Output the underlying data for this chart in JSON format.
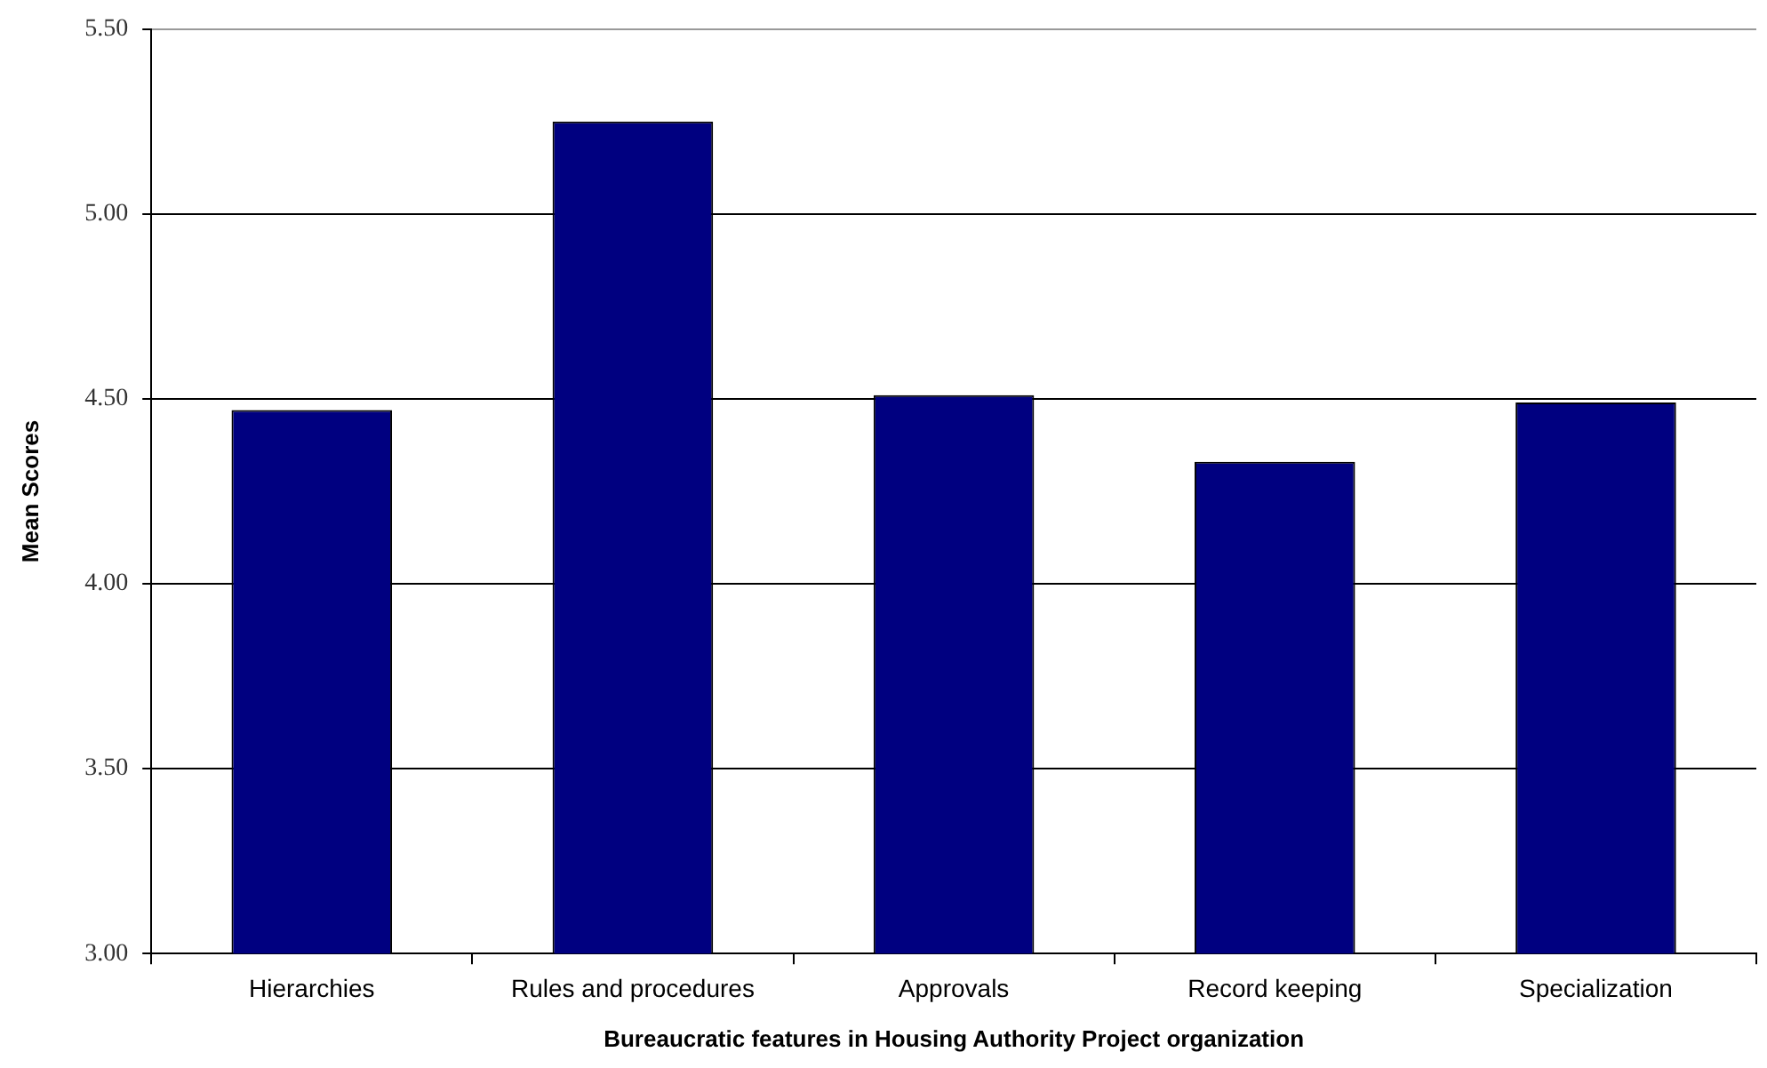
{
  "chart_data": {
    "type": "bar",
    "xlabel": "Bureaucratic features in Housing Authority Project organization",
    "ylabel": "Mean Scores",
    "categories": [
      "Hierarchies",
      "Rules and procedures",
      "Approvals",
      "Record keeping",
      "Specialization"
    ],
    "values": [
      4.47,
      5.25,
      4.51,
      4.33,
      4.49
    ],
    "color": "#000080",
    "ylim": [
      3,
      5.5
    ],
    "yticks": [
      {
        "value": 3,
        "label": "3.00"
      },
      {
        "value": 3.5,
        "label": "3.50"
      },
      {
        "value": 4,
        "label": "4.00"
      },
      {
        "value": 4.5,
        "label": "4.50"
      },
      {
        "value": 5,
        "label": "5.00"
      },
      {
        "value": 5.5,
        "label": "5.50"
      }
    ],
    "grid": "y",
    "legend": false
  }
}
